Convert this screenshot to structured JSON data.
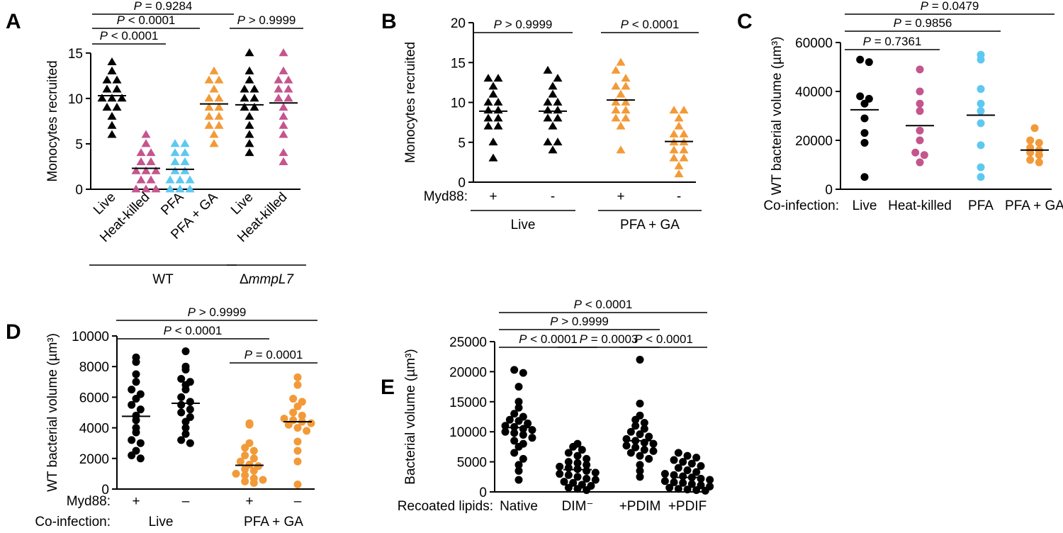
{
  "colors": {
    "black": "#000000",
    "pink": "#c4558d",
    "blue": "#5ec8f0",
    "orange": "#f29a38"
  },
  "chart_data": [
    {
      "panel": "A",
      "type": "scatter",
      "marker": "triangle",
      "ylabel": "Monocytes recruited",
      "ylim": [
        0,
        16
      ],
      "yticks": [
        0,
        5,
        10,
        15
      ],
      "categories": [
        "Live",
        "Heat-killed",
        "PFA",
        "PFA + GA",
        "Live",
        "Heat-killed"
      ],
      "category_rotated": true,
      "groups": [
        {
          "label": "WT",
          "span": [
            0,
            3
          ]
        },
        {
          "label": "ΔmmpL7",
          "span": [
            4,
            5
          ],
          "italic": true
        }
      ],
      "series": [
        {
          "color": "#000000",
          "mean": 10.3,
          "values": [
            14,
            13,
            12,
            12,
            11,
            11,
            10,
            10,
            10,
            9,
            9,
            8,
            7,
            6
          ]
        },
        {
          "color": "#c4558d",
          "mean": 2.3,
          "values": [
            6,
            5,
            4,
            4,
            3,
            3,
            2,
            2,
            2,
            1,
            1,
            0,
            0,
            0
          ]
        },
        {
          "color": "#5ec8f0",
          "mean": 2.2,
          "values": [
            5,
            5,
            4,
            4,
            3,
            3,
            2,
            2,
            1,
            1,
            1,
            0,
            0,
            0
          ]
        },
        {
          "color": "#f29a38",
          "mean": 9.4,
          "values": [
            13,
            12,
            12,
            11,
            10,
            10,
            9,
            9,
            8,
            8,
            7,
            7,
            6,
            5
          ]
        },
        {
          "color": "#000000",
          "mean": 9.3,
          "values": [
            15,
            13,
            12,
            11,
            11,
            10,
            10,
            9,
            9,
            8,
            7,
            6,
            5,
            4
          ]
        },
        {
          "color": "#c4558d",
          "mean": 9.5,
          "values": [
            15,
            13,
            12,
            12,
            11,
            11,
            10,
            10,
            9,
            8,
            7,
            6,
            4,
            3
          ]
        }
      ],
      "comparisons": [
        {
          "from": 0,
          "to": 1,
          "level": 0,
          "text": "P < 0.0001",
          "italic_p": true
        },
        {
          "from": 0,
          "to": 2,
          "level": 1,
          "text": "P < 0.0001",
          "italic_p": true
        },
        {
          "from": 0,
          "to": 3,
          "level": 2,
          "text": "P = 0.9284",
          "italic_p": true
        },
        {
          "from": 4,
          "to": 5,
          "level": 1,
          "text": "P > 0.9999",
          "italic_p": true
        }
      ]
    },
    {
      "panel": "B",
      "type": "scatter",
      "marker": "triangle",
      "ylabel": "Monocytes recruited",
      "ylim": [
        0,
        20
      ],
      "yticks": [
        0,
        5,
        10,
        15,
        20
      ],
      "row_label": "Myd88:",
      "categories": [
        "+",
        "-",
        "+",
        "-"
      ],
      "groups": [
        {
          "label": "Live",
          "span": [
            0,
            1
          ]
        },
        {
          "label": "PFA + GA",
          "span": [
            2,
            3
          ]
        }
      ],
      "series": [
        {
          "color": "#000000",
          "mean": 8.9,
          "values": [
            13,
            13,
            12,
            11,
            10,
            10,
            9,
            9,
            8,
            8,
            7,
            7,
            5,
            3
          ]
        },
        {
          "color": "#000000",
          "mean": 8.9,
          "values": [
            14,
            13,
            12,
            11,
            10,
            10,
            9,
            9,
            8,
            8,
            7,
            5,
            5,
            4
          ]
        },
        {
          "color": "#f29a38",
          "mean": 10.3,
          "values": [
            15,
            14,
            13,
            12,
            12,
            11,
            10,
            10,
            9,
            9,
            8,
            8,
            7,
            4
          ]
        },
        {
          "color": "#f29a38",
          "mean": 5.1,
          "values": [
            9,
            9,
            8,
            7,
            6,
            6,
            5,
            5,
            4,
            4,
            3,
            3,
            2,
            1
          ]
        }
      ],
      "comparisons": [
        {
          "from": 0,
          "to": 1,
          "level": 0,
          "text": "P > 0.9999",
          "italic_p": true
        },
        {
          "from": 2,
          "to": 3,
          "level": 0,
          "text": "P < 0.0001",
          "italic_p": true
        }
      ]
    },
    {
      "panel": "C",
      "type": "scatter",
      "marker": "circle",
      "ylabel": "WT bacterial volume (µm³)",
      "ylim": [
        0,
        60000
      ],
      "yticks": [
        0,
        20000,
        40000,
        60000
      ],
      "row_label": "Co-infection:",
      "categories": [
        "Live",
        "Heat-killed",
        "PFA",
        "PFA + GA"
      ],
      "series": [
        {
          "color": "#000000",
          "mean": 32500,
          "values": [
            53000,
            52000,
            38000,
            37000,
            35000,
            29000,
            23000,
            19000,
            5000
          ]
        },
        {
          "color": "#c4558d",
          "mean": 26000,
          "values": [
            49000,
            40000,
            35000,
            32000,
            24000,
            20000,
            15000,
            14000,
            11000
          ]
        },
        {
          "color": "#5ec8f0",
          "mean": 30300,
          "values": [
            55000,
            53000,
            41000,
            35000,
            32000,
            27000,
            18000,
            9000,
            5000
          ]
        },
        {
          "color": "#f29a38",
          "mean": 16000,
          "values": [
            25000,
            20000,
            19000,
            17000,
            16000,
            15000,
            14000,
            12000,
            11000
          ]
        }
      ],
      "comparisons": [
        {
          "from": 0,
          "to": 1,
          "level": 0,
          "text": "P = 0.7361",
          "italic_p": true
        },
        {
          "from": 0,
          "to": 2,
          "level": 1,
          "text": "P = 0.9856",
          "italic_p": true
        },
        {
          "from": 0,
          "to": 3,
          "level": 2,
          "text": "P = 0.0479",
          "italic_p": true
        }
      ]
    },
    {
      "panel": "D",
      "type": "scatter",
      "marker": "circle",
      "ylabel": "WT bacterial volume (µm³)",
      "ylim": [
        0,
        10000
      ],
      "yticks": [
        0,
        2000,
        4000,
        6000,
        8000,
        10000
      ],
      "row_label": "Myd88:",
      "row_label2": "Co-infection:",
      "categories": [
        "+",
        "–",
        "+",
        "–"
      ],
      "groups": [
        {
          "label": "Live",
          "span": [
            0,
            1
          ]
        },
        {
          "label": "PFA + GA",
          "span": [
            2,
            3
          ]
        }
      ],
      "series": [
        {
          "color": "#000000",
          "mean": 4750,
          "values": [
            8600,
            8300,
            7500,
            7000,
            6500,
            6200,
            5900,
            5500,
            5200,
            4800,
            4500,
            4000,
            3700,
            3200,
            3000,
            2500,
            2200,
            2000
          ]
        },
        {
          "color": "#000000",
          "mean": 5600,
          "values": [
            9000,
            8000,
            7800,
            7200,
            7000,
            6800,
            6500,
            6000,
            5700,
            5500,
            5200,
            5000,
            4700,
            4400,
            4000,
            3600,
            3200,
            3000
          ]
        },
        {
          "color": "#f29a38",
          "mean": 1550,
          "values": [
            4300,
            4200,
            3000,
            2700,
            2500,
            2200,
            2000,
            1800,
            1600,
            1500,
            1300,
            1200,
            1000,
            900,
            700,
            600,
            500,
            400
          ]
        },
        {
          "color": "#f29a38",
          "mean": 4400,
          "values": [
            7300,
            6800,
            5900,
            5700,
            5400,
            5000,
            4800,
            4600,
            4500,
            4400,
            4300,
            4200,
            4000,
            3800,
            3100,
            2500,
            1800,
            300
          ]
        }
      ],
      "comparisons": [
        {
          "from": 2,
          "to": 3,
          "level": 0,
          "text": "P = 0.0001",
          "italic_p": true
        },
        {
          "from": 0,
          "to": 2,
          "level": 1,
          "text": "P < 0.0001",
          "italic_p": true
        },
        {
          "from": 0,
          "to": 3,
          "level": 2,
          "text": "P > 0.9999",
          "italic_p": true
        }
      ]
    },
    {
      "panel": "E",
      "type": "scatter",
      "marker": "circle",
      "ylabel": "Bacterial volume (µm³)",
      "ylim": [
        0,
        25000
      ],
      "yticks": [
        0,
        5000,
        10000,
        15000,
        20000,
        25000
      ],
      "row_label": "Recoated lipids:",
      "categories": [
        "Native",
        "DIM⁻",
        "+PDIM",
        "+PDIF"
      ],
      "series": [
        {
          "color": "#000000",
          "mean": 10700,
          "values": [
            20300,
            19800,
            17500,
            15000,
            14000,
            13000,
            12500,
            12000,
            11800,
            11400,
            11000,
            10800,
            10500,
            10300,
            10000,
            9800,
            9500,
            9000,
            8500,
            8000,
            7500,
            6500,
            5500,
            4500,
            3500,
            2000
          ]
        },
        {
          "color": "#000000",
          "mean": 3700,
          "values": [
            8000,
            7500,
            7000,
            6500,
            6000,
            5500,
            5000,
            4800,
            4500,
            4200,
            4000,
            3800,
            3500,
            3200,
            3000,
            2800,
            2500,
            2200,
            2000,
            1700,
            1500,
            1200,
            1000,
            700,
            500,
            300
          ]
        },
        {
          "color": "#000000",
          "mean": 8500,
          "values": [
            22000,
            14700,
            12700,
            12000,
            11500,
            11000,
            10500,
            10000,
            9600,
            9200,
            8800,
            8500,
            8200,
            8000,
            7700,
            7400,
            7000,
            6800,
            6500,
            6000,
            5500,
            4500,
            3500,
            2500
          ]
        },
        {
          "color": "#000000",
          "mean": 2400,
          "values": [
            6500,
            6000,
            5700,
            5300,
            5000,
            4700,
            4300,
            4000,
            3600,
            3300,
            3000,
            2800,
            2600,
            2400,
            2200,
            2000,
            1800,
            1600,
            1500,
            1300,
            1100,
            900,
            700,
            500,
            400,
            300,
            200
          ]
        }
      ],
      "comparisons": [
        {
          "from": 0,
          "to": 1,
          "level": 0,
          "text": "P < 0.0001",
          "italic_p": true
        },
        {
          "from": 1,
          "to": 2,
          "level": 0,
          "text": "P = 0.0003",
          "italic_p": true
        },
        {
          "from": 2,
          "to": 3,
          "level": 0,
          "text": "P < 0.0001",
          "italic_p": true
        },
        {
          "from": 0,
          "to": 2,
          "level": 1,
          "text": "P > 0.9999",
          "italic_p": true
        },
        {
          "from": 0,
          "to": 3,
          "level": 2,
          "text": "P < 0.0001",
          "italic_p": true
        }
      ]
    }
  ]
}
